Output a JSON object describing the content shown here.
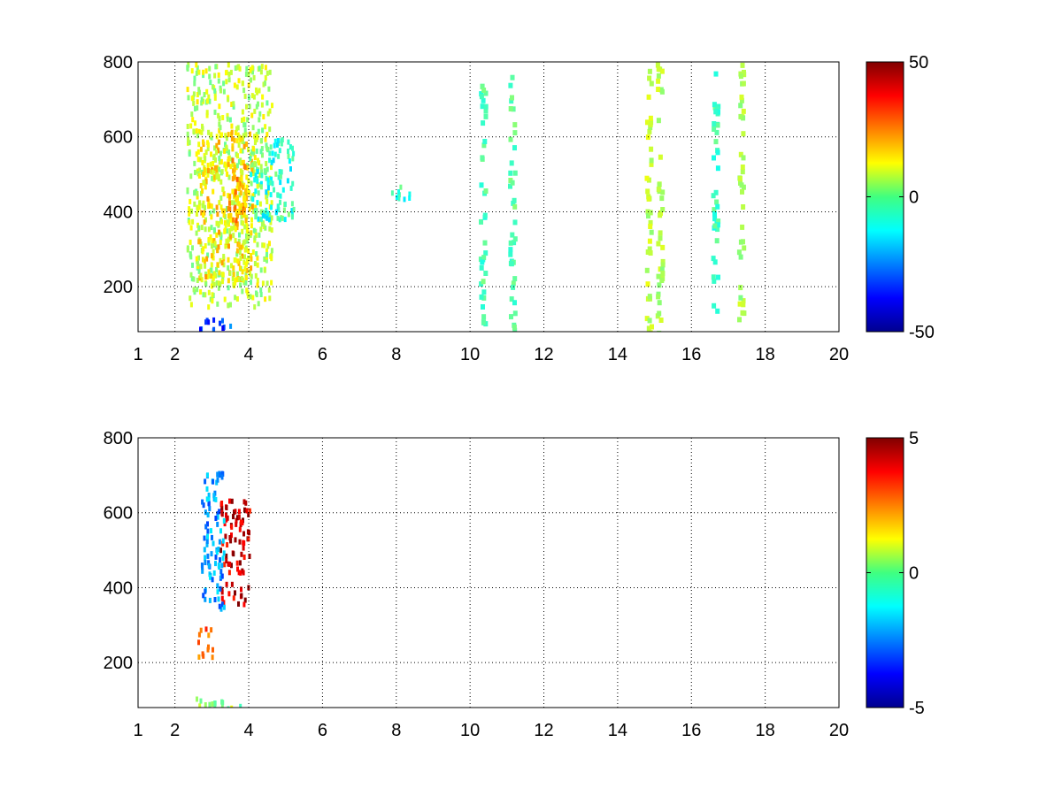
{
  "chart_data": [
    {
      "type": "heatmap",
      "x_ticks": [
        "1",
        "2",
        "4",
        "6",
        "8",
        "10",
        "12",
        "14",
        "16",
        "18",
        "20"
      ],
      "y_ticks": [
        "200",
        "400",
        "600",
        "800"
      ],
      "xlim": [
        1,
        20
      ],
      "ylim": [
        80,
        800
      ],
      "grid": true,
      "colormap": "jet",
      "colorbar": {
        "min": -50,
        "max": 50,
        "ticks": [
          "50",
          "0",
          "-50"
        ]
      },
      "regions": [
        {
          "x": [
            2.3,
            4.6
          ],
          "y": [
            150,
            800
          ],
          "level": 0.12
        },
        {
          "x": [
            2.6,
            4.1
          ],
          "y": [
            220,
            620
          ],
          "level": 0.28
        },
        {
          "x": [
            3.4,
            3.9
          ],
          "y": [
            380,
            560
          ],
          "level": 0.45
        },
        {
          "x": [
            4.0,
            5.2
          ],
          "y": [
            380,
            600
          ],
          "level": -0.15
        },
        {
          "x": [
            7.8,
            8.4
          ],
          "y": [
            440,
            480
          ],
          "level": -0.2
        },
        {
          "x": [
            2.5,
            3.5
          ],
          "y": [
            80,
            120
          ],
          "level": -0.6
        }
      ],
      "stripes": [
        {
          "x": 15.1,
          "level": 0.1
        },
        {
          "x": 16.6,
          "level": -0.12
        },
        {
          "x": 17.3,
          "level": 0.08
        },
        {
          "x": 10.3,
          "level": -0.1
        },
        {
          "x": 11.1,
          "level": -0.08
        },
        {
          "x": 14.8,
          "level": 0.12
        }
      ]
    },
    {
      "type": "heatmap",
      "x_ticks": [
        "1",
        "2",
        "4",
        "6",
        "8",
        "10",
        "12",
        "14",
        "16",
        "18",
        "20"
      ],
      "y_ticks": [
        "200",
        "400",
        "600",
        "800"
      ],
      "xlim": [
        1,
        20
      ],
      "ylim": [
        80,
        800
      ],
      "grid": true,
      "colormap": "jet",
      "colorbar": {
        "min": -5,
        "max": 5,
        "ticks": [
          "5",
          "0",
          "-5"
        ]
      },
      "regions": [
        {
          "x": [
            3.2,
            4.0
          ],
          "y": [
            360,
            640
          ],
          "level": 0.85
        },
        {
          "x": [
            2.7,
            3.3
          ],
          "y": [
            330,
            720
          ],
          "level": -0.45
        },
        {
          "x": [
            2.6,
            3.0
          ],
          "y": [
            220,
            300
          ],
          "level": 0.55
        },
        {
          "x": [
            2.5,
            3.9
          ],
          "y": [
            80,
            110
          ],
          "level": 0.05
        }
      ],
      "stripes": []
    }
  ]
}
